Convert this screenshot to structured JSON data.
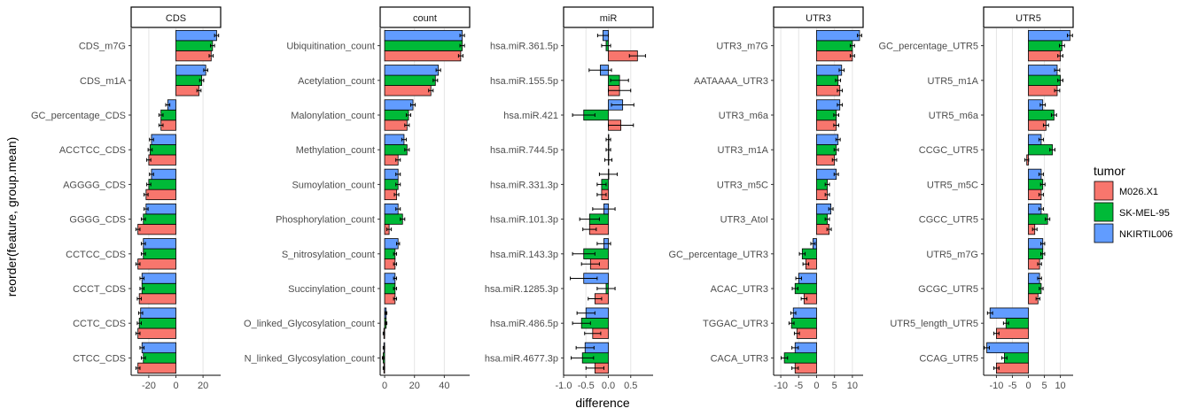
{
  "figure": {
    "ylabel": "reorder(feature, group.mean)",
    "xlabel": "difference",
    "legend": {
      "title": "tumor",
      "position": "right",
      "items": [
        {
          "label": "M026.X1",
          "color": "#F8766D"
        },
        {
          "label": "SK-MEL-95",
          "color": "#00BA38"
        },
        {
          "label": "NKIRTIL006",
          "color": "#619CFF"
        }
      ]
    }
  },
  "chart_data": [
    {
      "type": "bar",
      "orientation": "horizontal",
      "title": "CDS",
      "xlim": [
        -33,
        33
      ],
      "xticks": [
        -20,
        0,
        20
      ],
      "xtick_labels": [
        "-20",
        "0",
        "20"
      ],
      "categories": [
        "CDS_m7G",
        "CDS_m1A",
        "GC_percentage_CDS",
        "ACCTCC_CDS",
        "AGGGG_CDS",
        "GGGG_CDS",
        "CCTCC_CDS",
        "CCCT_CDS",
        "CCTC_CDS",
        "CTCC_CDS"
      ],
      "series": [
        {
          "name": "M026.X1",
          "values": [
            26,
            17,
            -11,
            -20,
            -22,
            -28,
            -28,
            -27,
            -28,
            -28
          ],
          "err": [
            1.5,
            1.5,
            1.5,
            1.5,
            1.5,
            1.5,
            1.5,
            1.5,
            1.5,
            1.5
          ]
        },
        {
          "name": "SK-MEL-95",
          "values": [
            27,
            19,
            -11,
            -19,
            -20,
            -24,
            -24,
            -25,
            -27,
            -24
          ],
          "err": [
            1.5,
            1.5,
            1.5,
            1.5,
            1.5,
            1.5,
            1.5,
            1.5,
            1.5,
            1.5
          ]
        },
        {
          "name": "NKIRTIL006",
          "values": [
            30,
            22,
            -6,
            -18,
            -18,
            -22,
            -24,
            -25,
            -26,
            -25
          ],
          "err": [
            1.5,
            1.5,
            1.5,
            1.5,
            1.5,
            1.5,
            1.5,
            1.5,
            1.5,
            1.5
          ]
        }
      ]
    },
    {
      "type": "bar",
      "orientation": "horizontal",
      "title": "count",
      "xlim": [
        -3,
        57
      ],
      "xticks": [
        0,
        20,
        40
      ],
      "xtick_labels": [
        "0",
        "20",
        "40"
      ],
      "categories": [
        "Ubiquitination_count",
        "Acetylation_count",
        "Malonylation_count",
        "Methylation_count",
        "Sumoylation_count",
        "Phosphorylation_count",
        "S_nitrosylation_count",
        "Succinylation_count",
        "O_linked_Glycosylation_count",
        "N_linked_Glycosylation_count"
      ],
      "series": [
        {
          "name": "M026.X1",
          "values": [
            51,
            31,
            15,
            9,
            8,
            3,
            7,
            7,
            -0.5,
            -0.5
          ],
          "err": [
            1.5,
            1.5,
            1.5,
            1.5,
            1.5,
            1.5,
            1,
            1,
            0.5,
            0.5
          ]
        },
        {
          "name": "SK-MEL-95",
          "values": [
            52,
            34,
            16,
            15,
            9,
            12,
            7,
            7,
            1,
            -1
          ],
          "err": [
            1.5,
            1.5,
            1.5,
            1.5,
            1.5,
            1.5,
            1,
            1,
            0.5,
            0.5
          ]
        },
        {
          "name": "NKIRTIL006",
          "values": [
            52,
            36,
            19,
            13,
            9,
            9,
            9,
            7,
            1,
            -0.5
          ],
          "err": [
            1.5,
            1.5,
            1.5,
            1.5,
            1.5,
            1.5,
            1,
            1,
            0.5,
            0.5
          ]
        }
      ]
    },
    {
      "type": "bar",
      "orientation": "horizontal",
      "title": "miR",
      "xlim": [
        -1.0,
        1.0
      ],
      "xticks": [
        -1.0,
        -0.5,
        0.0,
        0.5
      ],
      "xtick_labels": [
        "-1.0",
        "-0.5",
        "0.0",
        "0.5"
      ],
      "categories": [
        "hsa.miR.361.5p",
        "hsa.miR.155.5p",
        "hsa.miR.421",
        "hsa.miR.744.5p",
        "hsa.miR.331.3p",
        "hsa.miR.101.3p",
        "hsa.miR.143.3p",
        "hsa.miR.1285.3p",
        "hsa.miR.486.5p",
        "hsa.miR.4677.3p"
      ],
      "series": [
        {
          "name": "M026.X1",
          "values": [
            0.65,
            0.25,
            0.28,
            0.0,
            -0.15,
            -0.42,
            -0.4,
            -0.3,
            -0.35,
            -0.3
          ],
          "err": [
            0.18,
            0.25,
            0.28,
            0.08,
            0.1,
            0.15,
            0.2,
            0.15,
            0.18,
            0.2
          ]
        },
        {
          "name": "SK-MEL-95",
          "values": [
            -0.05,
            0.25,
            -0.55,
            0.0,
            -0.15,
            -0.42,
            -0.55,
            -0.05,
            -0.6,
            -0.58
          ],
          "err": [
            0.1,
            0.2,
            0.25,
            0.05,
            0.1,
            0.22,
            0.25,
            0.2,
            0.2,
            0.25
          ]
        },
        {
          "name": "NKIRTIL006",
          "values": [
            -0.12,
            -0.18,
            0.32,
            0.0,
            0.0,
            -0.1,
            -0.1,
            -0.55,
            -0.5,
            -0.52
          ],
          "err": [
            0.12,
            0.25,
            0.25,
            0.05,
            0.2,
            0.25,
            0.15,
            0.3,
            0.2,
            0.2
          ]
        }
      ]
    },
    {
      "type": "bar",
      "orientation": "horizontal",
      "title": "UTR3",
      "xlim": [
        -12,
        13
      ],
      "xticks": [
        -10,
        -5,
        0,
        5,
        10
      ],
      "xtick_labels": [
        "-10",
        "-5",
        "0",
        "5",
        "10"
      ],
      "categories": [
        "UTR3_m7G",
        "AATAAAA_UTR3",
        "UTR3_m6a",
        "UTR3_m1A",
        "UTR3_m5C",
        "UTR3_AtoI",
        "GC_percentage_UTR3",
        "ACAC_UTR3",
        "TGGAC_UTR3",
        "CACA_UTR3"
      ],
      "series": [
        {
          "name": "M026.X1",
          "values": [
            10,
            6.5,
            5.5,
            5,
            3,
            3.5,
            -3,
            -3.5,
            -5.5,
            -6
          ],
          "err": [
            0.6,
            0.7,
            0.7,
            0.6,
            0.6,
            0.6,
            0.8,
            0.8,
            0.7,
            0.9
          ]
        },
        {
          "name": "SK-MEL-95",
          "values": [
            10,
            6,
            5.5,
            5.5,
            3,
            3,
            -4,
            -6,
            -7,
            -9
          ],
          "err": [
            0.6,
            0.7,
            0.7,
            0.6,
            0.6,
            0.6,
            0.8,
            0.8,
            0.7,
            0.9
          ]
        },
        {
          "name": "NKIRTIL006",
          "values": [
            12,
            7,
            6.5,
            6,
            5.5,
            4,
            -1,
            -5,
            -6.5,
            -6
          ],
          "err": [
            0.6,
            0.7,
            0.7,
            0.6,
            0.6,
            0.6,
            0.6,
            0.8,
            0.7,
            0.9
          ]
        }
      ]
    },
    {
      "type": "bar",
      "orientation": "horizontal",
      "title": "UTR5",
      "xlim": [
        -14,
        14
      ],
      "xticks": [
        -10,
        -5,
        0,
        5,
        10
      ],
      "xtick_labels": [
        "-10",
        "-5",
        "0",
        "5",
        "10"
      ],
      "categories": [
        "GC_percentage_UTR5",
        "UTR5_m1A",
        "UTR5_m6a",
        "CCGC_UTR5",
        "UTR5_m5C",
        "CGCC_UTR5",
        "UTR5_m7G",
        "GCGC_UTR5",
        "UTR5_length_UTR5",
        "CCAG_UTR5"
      ],
      "series": [
        {
          "name": "M026.X1",
          "values": [
            10,
            9,
            5.5,
            -0.5,
            4,
            2,
            3.5,
            3,
            -10,
            -10
          ],
          "err": [
            0.8,
            0.8,
            0.8,
            0.6,
            0.7,
            0.7,
            0.6,
            0.6,
            0.8,
            0.8
          ]
        },
        {
          "name": "SK-MEL-95",
          "values": [
            10.5,
            10,
            8,
            7.5,
            4.5,
            6,
            4.5,
            4,
            -7,
            -7.5
          ],
          "err": [
            0.8,
            0.8,
            0.8,
            0.8,
            0.7,
            0.7,
            0.6,
            0.6,
            0.8,
            0.8
          ]
        },
        {
          "name": "NKIRTIL006",
          "values": [
            13,
            9,
            4.5,
            4,
            4,
            4,
            4.5,
            3.5,
            -12,
            -13
          ],
          "err": [
            0.8,
            0.8,
            0.8,
            0.7,
            0.7,
            0.7,
            0.6,
            0.6,
            0.8,
            0.8
          ]
        }
      ]
    }
  ]
}
